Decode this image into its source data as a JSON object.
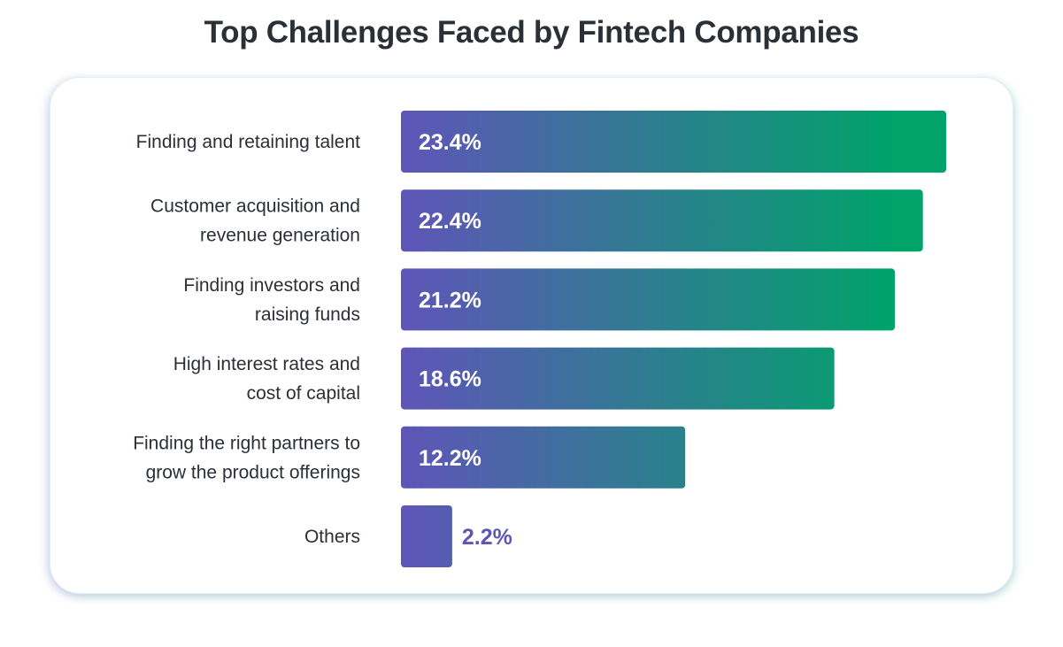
{
  "chart_data": {
    "type": "bar",
    "orientation": "horizontal",
    "title": "Top Challenges Faced by Fintech Companies",
    "xlabel": "",
    "ylabel": "",
    "grid": false,
    "xlim": [
      0,
      23.4
    ],
    "categories": [
      [
        "Finding and retaining talent"
      ],
      [
        "Customer acquisition and",
        "revenue generation"
      ],
      [
        "Finding investors and",
        "raising funds"
      ],
      [
        "High interest rates and",
        "cost of capital"
      ],
      [
        "Finding the right partners to",
        "grow the product offerings"
      ],
      [
        "Others"
      ]
    ],
    "values": [
      23.4,
      22.4,
      21.2,
      18.6,
      12.2,
      2.2
    ],
    "value_labels": [
      "23.4%",
      "22.4%",
      "21.2%",
      "18.6%",
      "12.2%",
      "2.2%"
    ],
    "colors": {
      "gradient_start": "#5f55b8",
      "gradient_end": "#00a36a",
      "outside_label": "#5f55b8",
      "inside_label": "#ffffff",
      "category_label": "#2b2f36"
    }
  }
}
